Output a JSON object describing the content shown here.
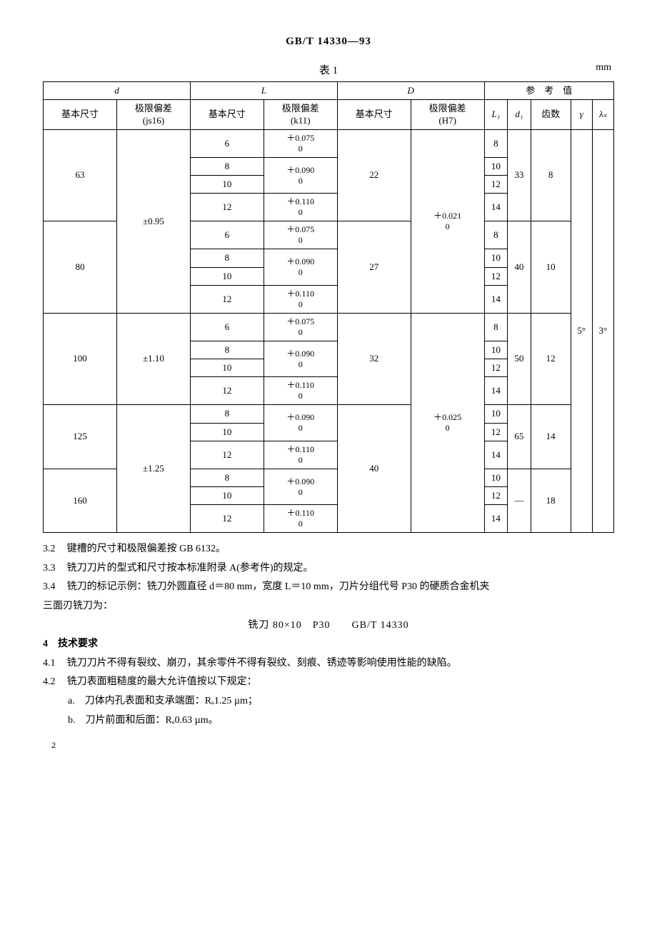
{
  "doc_code": "GB/T 14330—93",
  "table": {
    "caption": "表 1",
    "unit": "mm",
    "head": {
      "g_d": "d",
      "g_L": "L",
      "g_D": "D",
      "g_ref": "参　考　值",
      "basic": "基本尺寸",
      "tol_js16": "极限偏差\n(js16)",
      "tol_k11": "极限偏差\n(k11)",
      "tol_H7": "极限偏差\n(H7)",
      "L1": "L₁",
      "d1": "d₁",
      "teeth": "齿数",
      "gamma": "γ",
      "lambda": "λₛ"
    },
    "tol_values": {
      "pm095": "±0.95",
      "pm110": "±1.10",
      "pm125": "±1.25",
      "k075": [
        "＋0.075",
        "0"
      ],
      "k090": [
        "＋0.090",
        "0"
      ],
      "k110": [
        "＋0.110",
        "0"
      ],
      "H021": [
        "＋0.021",
        "0"
      ],
      "H025": [
        "＋0.025",
        "0"
      ]
    },
    "groups": [
      {
        "d": "63",
        "D": "22",
        "d1": "33",
        "teeth": "8"
      },
      {
        "d": "80",
        "D": "27",
        "d1": "40",
        "teeth": "10"
      },
      {
        "d": "100",
        "D": "32",
        "d1": "50",
        "teeth": "12"
      },
      {
        "d": "125",
        "D": "40",
        "d1": "65",
        "teeth": "14"
      },
      {
        "d": "160",
        "D": "40",
        "d1": "—",
        "teeth": "18"
      }
    ],
    "L_rows_4": [
      "6",
      "8",
      "10",
      "12"
    ],
    "L_rows_3": [
      "8",
      "10",
      "12"
    ],
    "L1_rows_4": [
      "8",
      "10",
      "12",
      "14"
    ],
    "L1_rows_3": [
      "10",
      "12",
      "14"
    ],
    "gamma": "5°",
    "lambda": "3°"
  },
  "clauses": {
    "c32": "键槽的尺寸和极限偏差按 GB 6132。",
    "c33": "铣刀刀片的型式和尺寸按本标准附录 A(参考件)的规定。",
    "c34a": "铣刀的标记示例：铣刀外圆直径 d＝80 mm，宽度 L＝10 mm，刀片分组代号 P30 的硬质合金机夹",
    "c34b": "三面刃铣刀为：",
    "c34_center": "铣刀 80×10　P30　　GB/T 14330",
    "sec4": "4　技术要求",
    "c41": "铣刀刀片不得有裂纹、崩刃，其余零件不得有裂纹、刻痕、锈迹等影响使用性能的缺陷。",
    "c42": "铣刀表面粗糙度的最大允许值按以下规定：",
    "c42a": "刀体内孔表面和支承端面：Rₐ1.25 µm；",
    "c42b": "刀片前面和后面：Rₐ0.63 µm。"
  },
  "page": "2"
}
